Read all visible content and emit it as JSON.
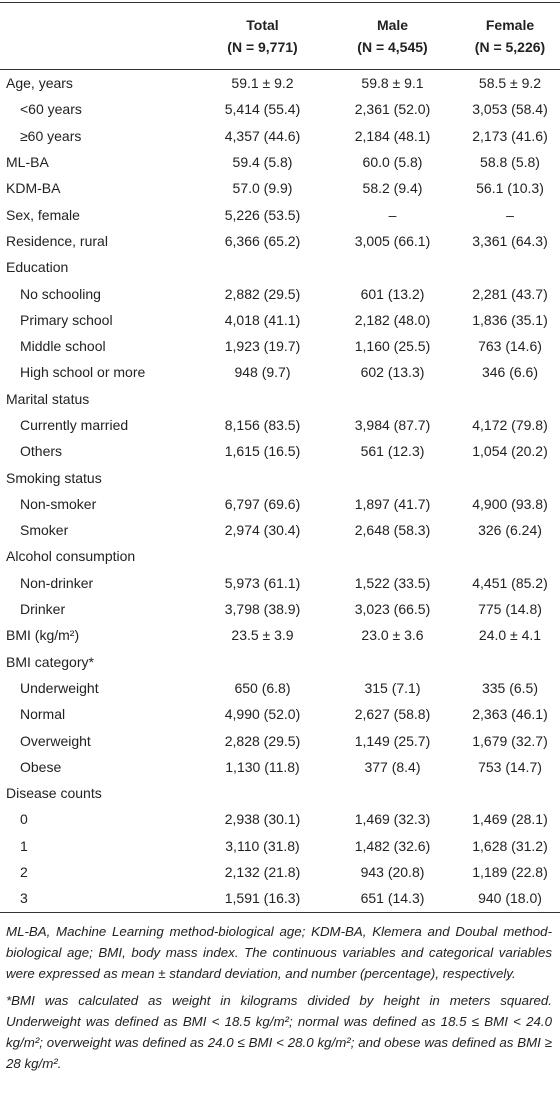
{
  "table": {
    "header": [
      {
        "title": "Total",
        "subtitle": "(N = 9,771)"
      },
      {
        "title": "Male",
        "subtitle": "(N = 4,545)"
      },
      {
        "title": "Female",
        "subtitle": "(N = 5,226)"
      }
    ],
    "rows": [
      {
        "label": "Age, years",
        "values": [
          "59.1 ± 9.2",
          "59.8 ± 9.1",
          "58.5 ± 9.2"
        ],
        "rows": [
          {
            "label": "<60 years",
            "values": [
              "5,414 (55.4)",
              "2,361 (52.0)",
              "3,053 (58.4)"
            ]
          },
          {
            "label": "≥60 years",
            "values": [
              "4,357 (44.6)",
              "2,184 (48.1)",
              "2,173 (41.6)"
            ]
          }
        ]
      },
      {
        "label": "ML-BA",
        "values": [
          "59.4 (5.8)",
          "60.0 (5.8)",
          "58.8 (5.8)"
        ]
      },
      {
        "label": "KDM-BA",
        "values": [
          "57.0 (9.9)",
          "58.2 (9.4)",
          "56.1 (10.3)"
        ]
      },
      {
        "label": "Sex, female",
        "values": [
          "5,226 (53.5)",
          "–",
          "–"
        ]
      },
      {
        "label": "Residence, rural",
        "values": [
          "6,366 (65.2)",
          "3,005 (66.1)",
          "3,361 (64.3)"
        ]
      },
      {
        "label": "Education",
        "rows": [
          {
            "label": "No schooling",
            "values": [
              "2,882 (29.5)",
              "601 (13.2)",
              "2,281 (43.7)"
            ]
          },
          {
            "label": "Primary school",
            "values": [
              "4,018 (41.1)",
              "2,182 (48.0)",
              "1,836 (35.1)"
            ]
          },
          {
            "label": "Middle school",
            "values": [
              "1,923 (19.7)",
              "1,160 (25.5)",
              "763 (14.6)"
            ]
          },
          {
            "label": "High school or more",
            "values": [
              "948 (9.7)",
              "602 (13.3)",
              "346 (6.6)"
            ]
          }
        ]
      },
      {
        "label": "Marital status",
        "rows": [
          {
            "label": "Currently married",
            "values": [
              "8,156 (83.5)",
              "3,984 (87.7)",
              "4,172 (79.8)"
            ]
          },
          {
            "label": "Others",
            "values": [
              "1,615 (16.5)",
              "561 (12.3)",
              "1,054 (20.2)"
            ]
          }
        ]
      },
      {
        "label": "Smoking status",
        "rows": [
          {
            "label": "Non-smoker",
            "values": [
              "6,797 (69.6)",
              "1,897 (41.7)",
              "4,900 (93.8)"
            ]
          },
          {
            "label": "Smoker",
            "values": [
              "2,974 (30.4)",
              "2,648 (58.3)",
              "326 (6.24)"
            ]
          }
        ]
      },
      {
        "label": "Alcohol consumption",
        "rows": [
          {
            "label": "Non-drinker",
            "values": [
              "5,973 (61.1)",
              "1,522 (33.5)",
              "4,451 (85.2)"
            ]
          },
          {
            "label": "Drinker",
            "values": [
              "3,798 (38.9)",
              "3,023 (66.5)",
              "775 (14.8)"
            ]
          }
        ]
      },
      {
        "label": "BMI (kg/m²)",
        "values": [
          "23.5 ± 3.9",
          "23.0 ± 3.6",
          "24.0 ± 4.1"
        ]
      },
      {
        "label": "BMI category*",
        "rows": [
          {
            "label": "Underweight",
            "values": [
              "650 (6.8)",
              "315 (7.1)",
              "335 (6.5)"
            ]
          },
          {
            "label": "Normal",
            "values": [
              "4,990 (52.0)",
              "2,627 (58.8)",
              "2,363 (46.1)"
            ]
          },
          {
            "label": "Overweight",
            "values": [
              "2,828 (29.5)",
              "1,149 (25.7)",
              "1,679 (32.7)"
            ]
          },
          {
            "label": "Obese",
            "values": [
              "1,130 (11.8)",
              "377 (8.4)",
              "753 (14.7)"
            ]
          }
        ]
      },
      {
        "label": "Disease counts",
        "rows": [
          {
            "label": "0",
            "values": [
              "2,938 (30.1)",
              "1,469 (32.3)",
              "1,469 (28.1)"
            ]
          },
          {
            "label": "1",
            "values": [
              "3,110 (31.8)",
              "1,482 (32.6)",
              "1,628 (31.2)"
            ]
          },
          {
            "label": "2",
            "values": [
              "2,132 (21.8)",
              "943 (20.8)",
              "1,189 (22.8)"
            ]
          },
          {
            "label": "3",
            "values": [
              "1,591 (16.3)",
              "651 (14.3)",
              "940 (18.0)"
            ]
          }
        ]
      }
    ]
  },
  "notes": [
    "ML-BA, Machine Learning method-biological age; KDM-BA, Klemera and Doubal method-biological age; BMI, body mass index. The continuous variables and categorical variables were expressed as mean ± standard deviation, and number (percentage), respectively.",
    "*BMI was calculated as weight in kilograms divided by height in meters squared. Underweight was defined as BMI < 18.5 kg/m²; normal was defined as 18.5 ≤ BMI < 24.0 kg/m²; overweight was defined as 24.0 ≤ BMI < 28.0 kg/m²; and obese was defined as BMI ≥ 28 kg/m²."
  ]
}
